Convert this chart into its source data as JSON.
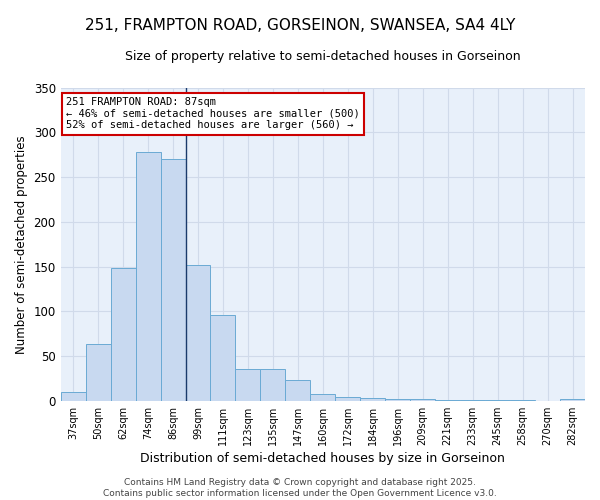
{
  "title": "251, FRAMPTON ROAD, GORSEINON, SWANSEA, SA4 4LY",
  "subtitle": "Size of property relative to semi-detached houses in Gorseinon",
  "xlabel": "Distribution of semi-detached houses by size in Gorseinon",
  "ylabel": "Number of semi-detached properties",
  "categories": [
    "37sqm",
    "50sqm",
    "62sqm",
    "74sqm",
    "86sqm",
    "99sqm",
    "111sqm",
    "123sqm",
    "135sqm",
    "147sqm",
    "160sqm",
    "172sqm",
    "184sqm",
    "196sqm",
    "209sqm",
    "221sqm",
    "233sqm",
    "245sqm",
    "258sqm",
    "270sqm",
    "282sqm"
  ],
  "values": [
    10,
    63,
    148,
    278,
    270,
    152,
    96,
    36,
    36,
    23,
    8,
    4,
    3,
    2,
    2,
    1,
    1,
    1,
    1,
    0,
    2
  ],
  "bar_color": "#c8d9f0",
  "bar_edge_color": "#6aaad4",
  "grid_color": "#d0daea",
  "background_color": "#ffffff",
  "plot_bg_color": "#e8f0fa",
  "vline_color": "#1a3a6b",
  "annotation_text": "251 FRAMPTON ROAD: 87sqm\n← 46% of semi-detached houses are smaller (500)\n52% of semi-detached houses are larger (560) →",
  "annotation_box_color": "#ffffff",
  "annotation_box_edge": "#cc0000",
  "footer_text": "Contains HM Land Registry data © Crown copyright and database right 2025.\nContains public sector information licensed under the Open Government Licence v3.0.",
  "ylim": [
    0,
    350
  ],
  "yticks": [
    0,
    50,
    100,
    150,
    200,
    250,
    300,
    350
  ],
  "title_fontsize": 11,
  "subtitle_fontsize": 9
}
